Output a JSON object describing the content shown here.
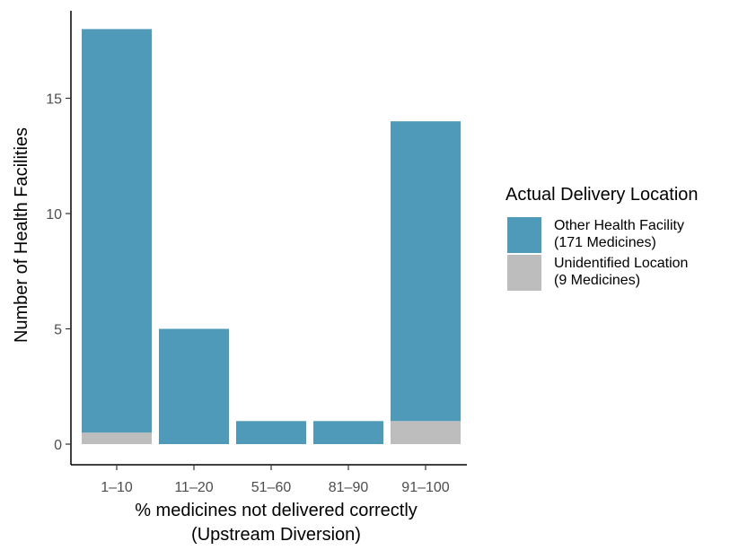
{
  "chart_data": {
    "type": "bar",
    "stacked": true,
    "categories": [
      "1–10",
      "11–20",
      "51–60",
      "81–90",
      "91–100"
    ],
    "series": [
      {
        "name": "Unidentified Location\n(9 Medicines)",
        "values": [
          0.5,
          0,
          0,
          0,
          1
        ],
        "color": "#bdbdbd"
      },
      {
        "name": "Other Health Facility\n(171 Medicines)",
        "values": [
          17.5,
          5,
          1,
          1,
          13
        ],
        "color": "#4f99b9"
      }
    ],
    "xlabel": [
      "% medicines not delivered correctly",
      "(Upstream Diversion)"
    ],
    "ylabel": "Number of Health Facilities",
    "ylim": [
      0,
      18
    ],
    "yticks": [
      0,
      5,
      10,
      15
    ],
    "ytick_labels": [
      "0",
      "5",
      "10",
      "15"
    ],
    "grid": false,
    "legend": {
      "title": "Actual Delivery Location",
      "position": "right",
      "entries": [
        {
          "lines": [
            "Other Health Facility",
            "(171 Medicines)"
          ],
          "color": "#4f99b9"
        },
        {
          "lines": [
            "Unidentified Location",
            "(9 Medicines)"
          ],
          "color": "#bdbdbd"
        }
      ]
    }
  }
}
